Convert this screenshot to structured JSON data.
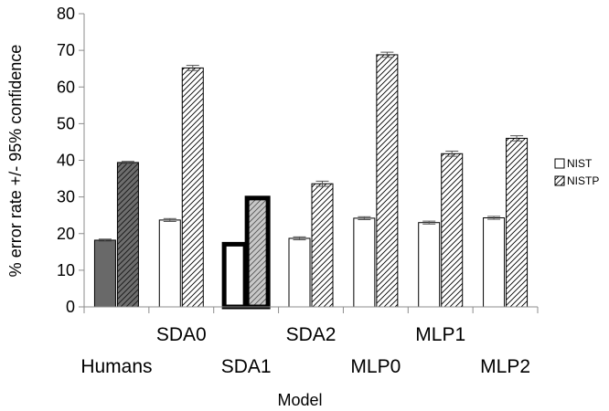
{
  "chart_data": {
    "type": "bar",
    "xlabel": "Model",
    "ylabel": "% error rate +/- 95% confidence",
    "ylim": [
      0,
      80
    ],
    "yticks": [
      0,
      10,
      20,
      30,
      40,
      50,
      60,
      70,
      80
    ],
    "grid": false,
    "legend_position": "right",
    "categories": [
      "Humans",
      "SDA0",
      "SDA1",
      "SDA2",
      "MLP0",
      "MLP1",
      "MLP2"
    ],
    "series": [
      {
        "name": "NIST",
        "values": [
          18.2,
          23.7,
          17.1,
          18.7,
          24.2,
          23.0,
          24.3
        ],
        "error": [
          0.3,
          0.4,
          0.3,
          0.4,
          0.4,
          0.4,
          0.4
        ]
      },
      {
        "name": "NISTP",
        "values": [
          39.4,
          65.2,
          29.7,
          33.6,
          68.8,
          41.8,
          46.0
        ],
        "error": [
          0.3,
          0.7,
          0.3,
          0.7,
          0.7,
          0.7,
          0.7
        ]
      }
    ],
    "colors": {
      "humans_nist": "#696969",
      "humans_nistp": "#6e6e6e",
      "highlight_nistp": "#c8c8c8",
      "bar_fill": "#ffffff",
      "outline": "#000000",
      "axis": "#8c8c8c"
    }
  }
}
